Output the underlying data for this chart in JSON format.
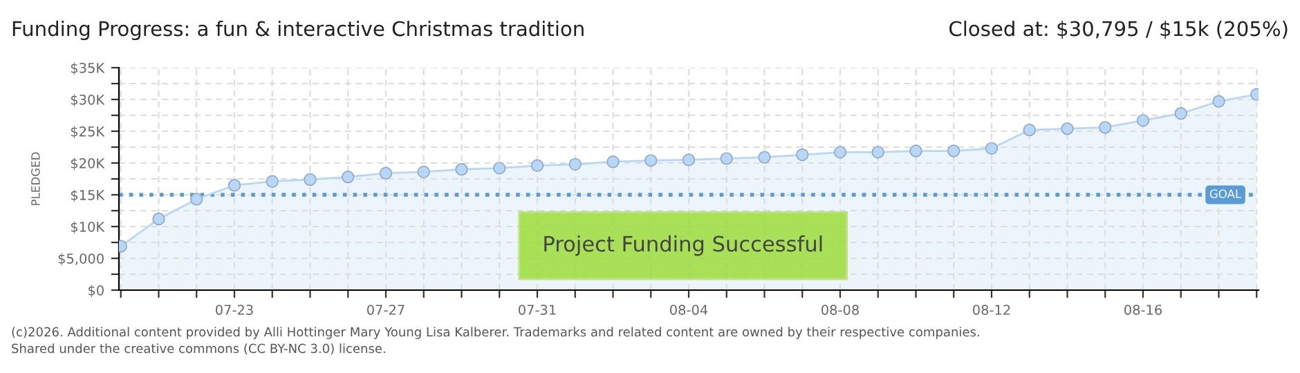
{
  "chart_data": {
    "type": "area",
    "title": "Funding Progress: a fun & interactive Christmas tradition",
    "subtitle": "Closed at: $30,795 / $15k (205%)",
    "ylabel": "PLEDGED",
    "categories": [
      null,
      null,
      null,
      "07-23",
      null,
      null,
      null,
      "07-27",
      null,
      null,
      null,
      "07-31",
      null,
      null,
      null,
      "08-04",
      null,
      null,
      null,
      "08-08",
      null,
      null,
      null,
      "08-12",
      null,
      null,
      null,
      "08-16",
      null,
      null,
      null
    ],
    "series": [
      {
        "color": "#b8d6f5",
        "values": [
          6900,
          11200,
          14300,
          16500,
          17100,
          17400,
          17800,
          18400,
          18600,
          19000,
          19200,
          19600,
          19800,
          20200,
          20400,
          20500,
          20700,
          20900,
          21300,
          21700,
          21700,
          21900,
          21900,
          22300,
          25200,
          25400,
          25600,
          26700,
          27800,
          29700,
          30800
        ]
      }
    ],
    "ylim": [
      0,
      35000
    ],
    "yticks": [
      {
        "value": 0,
        "label": "$0"
      },
      {
        "value": 2500,
        "label": null
      },
      {
        "value": 5000,
        "label": "$5,000"
      },
      {
        "value": 7500,
        "label": null
      },
      {
        "value": 10000,
        "label": "$10K"
      },
      {
        "value": 12500,
        "label": null
      },
      {
        "value": 15000,
        "label": "$15K"
      },
      {
        "value": 17500,
        "label": null
      },
      {
        "value": 20000,
        "label": "$20K"
      },
      {
        "value": 22500,
        "label": null
      },
      {
        "value": 25000,
        "label": "$25K"
      },
      {
        "value": 27500,
        "label": null
      },
      {
        "value": 30000,
        "label": "$30K"
      },
      {
        "value": 32500,
        "label": null
      },
      {
        "value": 35000,
        "label": "$35K"
      }
    ],
    "ref_lines": [
      {
        "axis": "y",
        "value": 15000,
        "label": "GOAL",
        "color": "#5b9bd5",
        "line_style": "dotted"
      }
    ],
    "grid": true,
    "marker": "circle",
    "legend": false,
    "annotations": [
      "Project Funding Successful",
      "(c)2026. Additional content provided by Alli Hottinger Mary Young Lisa Kalberer. Trademarks and related content are owned by their respective companies.",
      "Shared under the creative commons (CC BY-NC 3.0) license."
    ]
  }
}
